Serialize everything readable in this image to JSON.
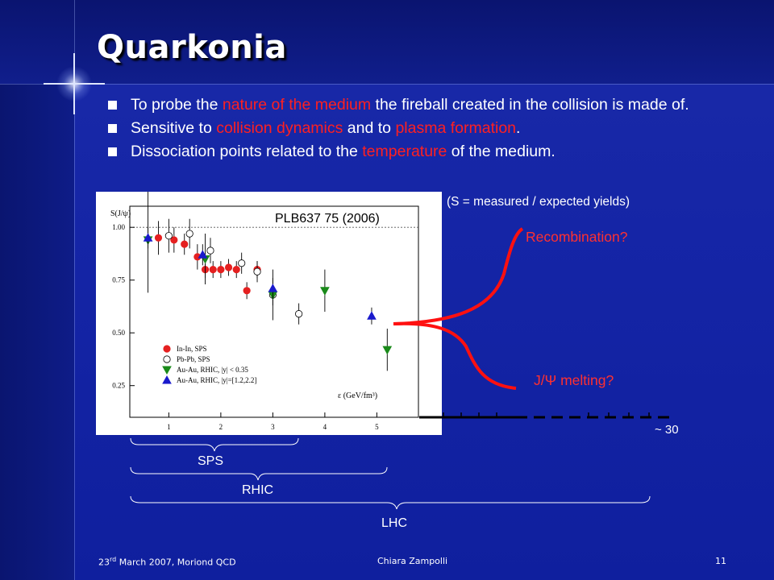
{
  "slide": {
    "title": "Quarkonia",
    "bullets": [
      {
        "parts": [
          {
            "text": "To probe the ",
            "red": false
          },
          {
            "text": "nature of the medium",
            "red": true
          },
          {
            "text": " the fireball created in the collision is made of.",
            "red": false
          }
        ]
      },
      {
        "parts": [
          {
            "text": "Sensitive to ",
            "red": false
          },
          {
            "text": "collision dynamics",
            "red": true
          },
          {
            "text": " and to ",
            "red": false
          },
          {
            "text": "plasma formation",
            "red": true
          },
          {
            "text": ".",
            "red": false
          }
        ]
      },
      {
        "parts": [
          {
            "text": "Dissociation points related to the ",
            "red": false
          },
          {
            "text": "temperature",
            "red": true
          },
          {
            "text": " of the medium.",
            "red": false
          }
        ]
      }
    ],
    "note": "(S = measured / expected yields)",
    "reference": "PLB637 75 (2006)",
    "recombination": "Recombination?",
    "melting": "J/Ψ melting?",
    "axis_far_tick": "~ 30",
    "ranges": [
      "SPS",
      "RHIC",
      "LHC"
    ],
    "footer_left": "March 2007, Moriond QCD",
    "footer_left_day": "23",
    "footer_left_sup": "rd",
    "footer_center": "Chiara Zampolli",
    "footer_page": "11",
    "colors": {
      "accent_red": "#ff2020",
      "background": "#1525a6"
    }
  },
  "chart_data": {
    "type": "scatter",
    "title": "",
    "ylabel": "S(J/ψ)",
    "xlabel": "ε (GeV/fm³)",
    "xlim": [
      0.25,
      5.8
    ],
    "ylim": [
      0.1,
      1.1
    ],
    "xticks": [
      "1",
      "2",
      "3",
      "4",
      "5"
    ],
    "yticks": [
      "0.25",
      "0.50",
      "0.75",
      "1.00"
    ],
    "grid": false,
    "legend_position": "lower-left",
    "series": [
      {
        "name": "In-In, SPS",
        "marker": "circle",
        "filled": true,
        "color": "#e52020",
        "points": [
          [
            0.8,
            0.95
          ],
          [
            1.1,
            0.94
          ],
          [
            1.3,
            0.92
          ],
          [
            1.55,
            0.86
          ],
          [
            1.7,
            0.8
          ],
          [
            1.85,
            0.8
          ],
          [
            2.0,
            0.8
          ],
          [
            2.15,
            0.81
          ],
          [
            2.3,
            0.8
          ],
          [
            2.5,
            0.7
          ],
          [
            2.7,
            0.8
          ]
        ],
        "errors": [
          0.08,
          0.06,
          0.05,
          0.06,
          0.04,
          0.04,
          0.04,
          0.04,
          0.04,
          0.04,
          0.04
        ]
      },
      {
        "name": "Pb-Pb, SPS",
        "marker": "circle",
        "filled": false,
        "color": "#ffffff",
        "points": [
          [
            1.0,
            0.96
          ],
          [
            1.4,
            0.97
          ],
          [
            1.8,
            0.89
          ],
          [
            2.4,
            0.83
          ],
          [
            2.7,
            0.79
          ],
          [
            3.0,
            0.68
          ],
          [
            3.5,
            0.59
          ]
        ],
        "errors": [
          0.08,
          0.07,
          0.06,
          0.05,
          0.05,
          0.05,
          0.05
        ]
      },
      {
        "name": "Au-Au, RHIC, |y| < 0.35",
        "marker": "triangle-down",
        "color": "#1a8a1a",
        "points": [
          [
            0.6,
            0.94
          ],
          [
            1.7,
            0.85
          ],
          [
            3.0,
            0.68
          ],
          [
            4.0,
            0.7
          ],
          [
            5.2,
            0.42
          ]
        ],
        "errors": [
          0.25,
          0.12,
          0.12,
          0.1,
          0.1
        ]
      },
      {
        "name": "Au-Au, RHIC, |y|=[1.2,2.2]",
        "marker": "triangle-up",
        "color": "#1a1acc",
        "points": [
          [
            0.6,
            0.95
          ],
          [
            1.65,
            0.87
          ],
          [
            3.0,
            0.71
          ],
          [
            4.9,
            0.58
          ]
        ],
        "errors": [
          0.05,
          0.05,
          0.05,
          0.04
        ]
      }
    ]
  }
}
